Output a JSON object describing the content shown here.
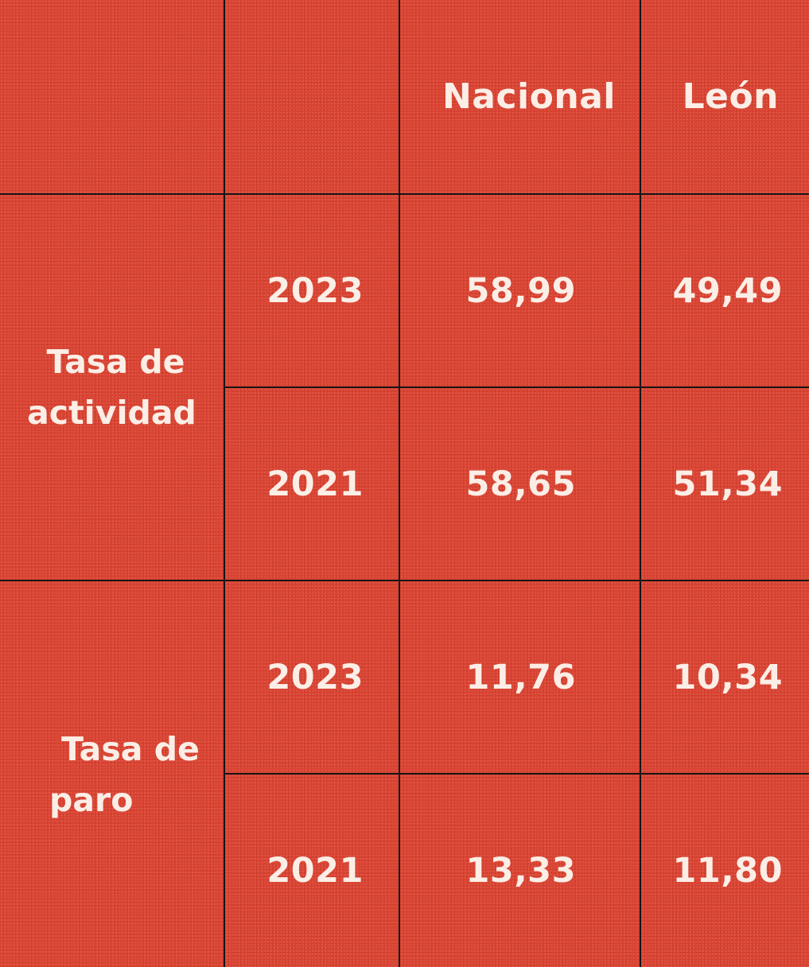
{
  "table": {
    "headers": [
      "",
      "",
      "Nacional",
      "León"
    ],
    "groups": [
      {
        "label_line1": "Tasa de",
        "label_line2": "actividad",
        "rows": [
          {
            "year": "2023",
            "nacional": "58,99",
            "leon": "49,49"
          },
          {
            "year": "2021",
            "nacional": "58,65",
            "leon": "51,34"
          }
        ]
      },
      {
        "label_line1": "Tasa de",
        "label_line2": "paro",
        "rows": [
          {
            "year": "2023",
            "nacional": "11,76",
            "leon": "10,34"
          },
          {
            "year": "2021",
            "nacional": "13,33",
            "leon": "11,80"
          }
        ]
      }
    ]
  },
  "chart_data": {
    "type": "table",
    "columns": [
      "",
      "",
      "Nacional",
      "León"
    ],
    "rows": [
      [
        "Tasa de actividad",
        "2023",
        "58,99",
        "49,49"
      ],
      [
        "Tasa de actividad",
        "2021",
        "58,65",
        "51,34"
      ],
      [
        "Tasa de paro",
        "2023",
        "11,76",
        "10,34"
      ],
      [
        "Tasa de paro",
        "2021",
        "13,33",
        "11,80"
      ]
    ]
  },
  "colors": {
    "cell_background": "#d9402f",
    "text": "#fbeee6",
    "grid_lines": "#151515"
  }
}
